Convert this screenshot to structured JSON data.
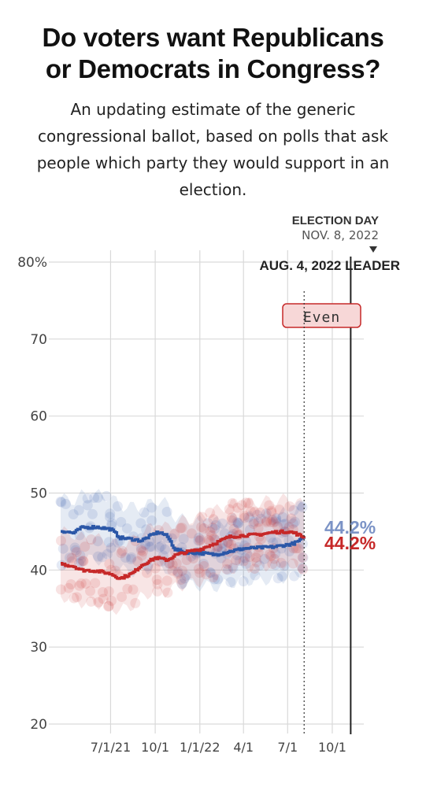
{
  "header": {
    "title_line1": "Do voters want Republicans",
    "title_line2": "or Democrats in Congress?",
    "subtitle_line1": "An updating estimate of the generic",
    "subtitle_line2": "congressional ballot, based on polls that ask",
    "subtitle_line3": "people which party they would support in an",
    "subtitle_line4": "election."
  },
  "annotations": {
    "election_day_label": "ELECTION DAY",
    "election_day_date": "NOV. 8, 2022",
    "leader_label": "AUG. 4, 2022 LEADER",
    "leader_value": "Even",
    "dem_value_label": "44.2%",
    "rep_value_label": "44.2%"
  },
  "colors": {
    "democrat": "#2b57a7",
    "republican": "#c62828",
    "grid": "#d9d9d9",
    "badge_fill": "#f7d7d7",
    "badge_border": "#c62828"
  },
  "chart_data": {
    "type": "line",
    "title": "Do voters want Republicans or Democrats in Congress?",
    "ylim": [
      20,
      80
    ],
    "yticks": [
      20,
      30,
      40,
      50,
      60,
      70,
      80
    ],
    "ytick_labels": [
      "20",
      "30",
      "40",
      "50",
      "60",
      "70",
      "80%"
    ],
    "xlim": [
      "2021-03-20",
      "2022-12-05"
    ],
    "xticks": [
      "2021-07-01",
      "2021-10-01",
      "2022-01-01",
      "2022-04-01",
      "2022-07-01",
      "2022-10-01"
    ],
    "xtick_labels": [
      "7/1/21",
      "10/1",
      "1/1/22",
      "4/1",
      "7/1",
      "10/1"
    ],
    "last_data_date": "2022-08-04",
    "election_day": "2022-11-08",
    "series": [
      {
        "party": "democrat",
        "x": [
          "2021-03-20",
          "2021-04-15",
          "2021-05-01",
          "2021-06-01",
          "2021-07-01",
          "2021-07-20",
          "2021-08-15",
          "2021-09-01",
          "2021-10-01",
          "2021-10-10",
          "2021-10-25",
          "2021-11-10",
          "2021-12-01",
          "2022-01-01",
          "2022-02-01",
          "2022-03-01",
          "2022-04-01",
          "2022-05-01",
          "2022-06-01",
          "2022-07-01",
          "2022-07-15",
          "2022-08-04"
        ],
        "values": [
          45.1,
          44.8,
          45.5,
          45.6,
          45.3,
          44.2,
          44.0,
          43.8,
          44.8,
          44.9,
          44.4,
          42.7,
          42.3,
          42.2,
          42.0,
          42.4,
          42.8,
          42.9,
          43.0,
          43.3,
          43.5,
          44.2
        ]
      },
      {
        "party": "republican",
        "x": [
          "2021-03-20",
          "2021-04-15",
          "2021-05-01",
          "2021-06-01",
          "2021-07-01",
          "2021-07-20",
          "2021-08-15",
          "2021-09-01",
          "2021-10-01",
          "2021-10-25",
          "2021-11-10",
          "2021-12-01",
          "2022-01-01",
          "2022-02-01",
          "2022-03-01",
          "2022-04-01",
          "2022-05-01",
          "2022-06-01",
          "2022-07-01",
          "2022-07-15",
          "2022-08-04"
        ],
        "values": [
          40.8,
          40.5,
          40.0,
          39.9,
          39.5,
          38.9,
          39.6,
          40.6,
          41.6,
          41.3,
          41.9,
          42.3,
          42.7,
          43.5,
          44.3,
          44.5,
          44.6,
          44.9,
          45.0,
          44.8,
          44.2
        ]
      }
    ]
  }
}
